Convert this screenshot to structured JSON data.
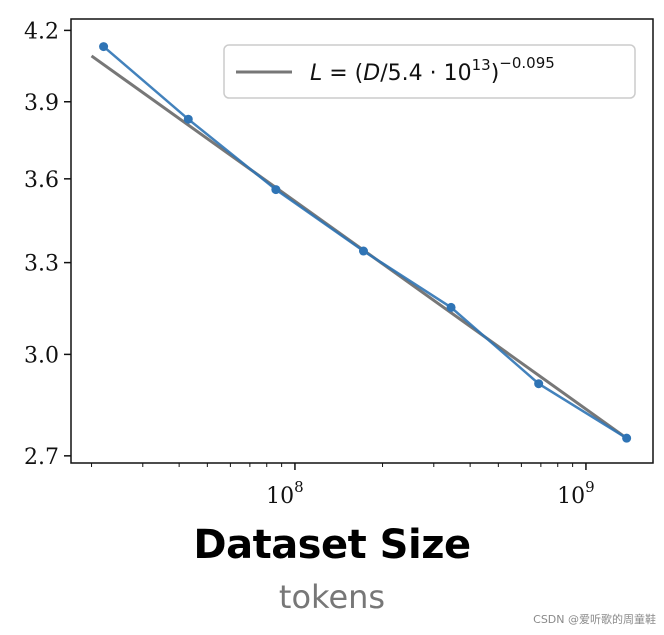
{
  "chart_data": {
    "type": "line",
    "xlabel": "Dataset Size",
    "xlabel_sub": "tokens",
    "x_scale": "log",
    "xlim": [
      17000000,
      1700000000
    ],
    "x_major_ticks": [
      100000000,
      1000000000
    ],
    "x_tick_labels": [
      {
        "base": "10",
        "exp": "8"
      },
      {
        "base": "10",
        "exp": "9"
      }
    ],
    "y_scale": "log",
    "ylim": [
      2.68,
      4.25
    ],
    "y_ticks": [
      2.7,
      3.0,
      3.3,
      3.6,
      3.9,
      4.2
    ],
    "y_tick_labels": [
      "2.7",
      "3.0",
      "3.3",
      "3.6",
      "3.9",
      "4.2"
    ],
    "grid": false,
    "legend_position": "top-right",
    "series": [
      {
        "kind": "data",
        "color": "#2f74b5",
        "x": [
          22000000,
          43000000,
          86000000,
          172000000,
          344000000,
          688000000,
          1380000000
        ],
        "y": [
          4.13,
          3.83,
          3.56,
          3.34,
          3.15,
          2.91,
          2.75
        ]
      },
      {
        "kind": "fit",
        "color": "#777777",
        "name": "L = (D/5.4 · 10^13)^−0.095",
        "legend": {
          "lhs": "L",
          "eq": " = (",
          "d": "D",
          "mid": "/5.4 · 10",
          "exp_inner": "13",
          "close": ")",
          "exp_outer": "−0.095"
        },
        "x": [
          20000000,
          1380000000
        ],
        "y": [
          4.09,
          2.75
        ]
      }
    ]
  },
  "watermark": "CSDN @爱听歌的周童鞋"
}
